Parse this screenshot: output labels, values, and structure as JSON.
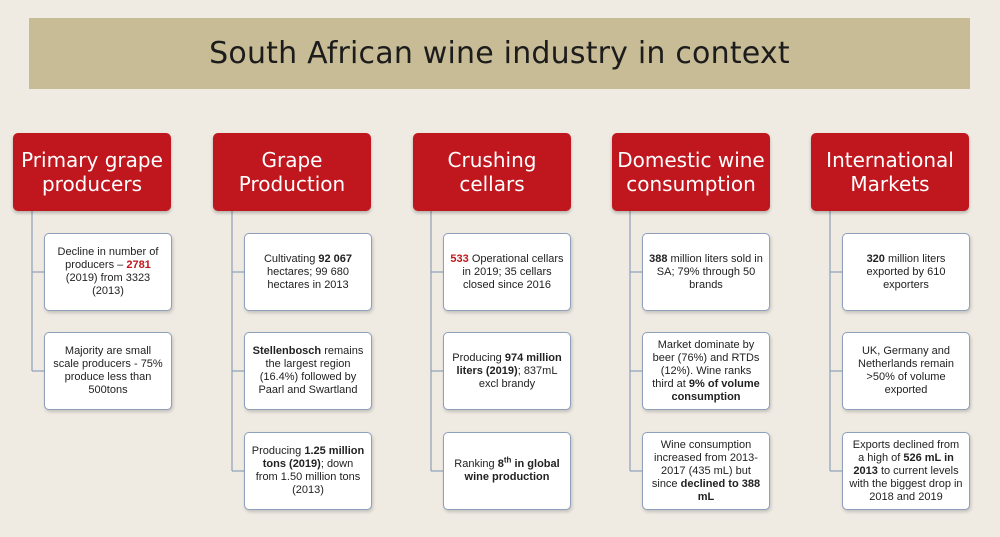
{
  "title": "South African wine industry in context",
  "colors": {
    "header_red": "#c0161d",
    "title_bar": "#c8bc96",
    "background": "#efebe3",
    "box_border": "#8ea0bb"
  },
  "columns": [
    {
      "header": [
        "Primary grape",
        "producers"
      ],
      "boxes": [
        [
          {
            "t": "Decline in number of producers – "
          },
          {
            "t": "2781",
            "red": true
          },
          {
            "t": " (2019) from 3323 (2013)"
          }
        ],
        [
          {
            "t": "Majority are small scale producers - 75% produce less than 500tons"
          }
        ]
      ]
    },
    {
      "header": [
        "Grape",
        "Production"
      ],
      "boxes": [
        [
          {
            "t": "Cultivating "
          },
          {
            "t": "92 067",
            "b": true
          },
          {
            "t": " hectares; 99 680 hectares in 2013"
          }
        ],
        [
          {
            "t": "Stellenbosch",
            "b": true
          },
          {
            "t": " remains the largest region (16.4%) followed by Paarl and Swartland"
          }
        ],
        [
          {
            "t": "Producing "
          },
          {
            "t": "1.25 million tons (2019)",
            "b": true
          },
          {
            "t": "; down from 1.50 million tons (2013)"
          }
        ]
      ]
    },
    {
      "header": [
        "Crushing",
        "cellars"
      ],
      "boxes": [
        [
          {
            "t": "533",
            "red": true
          },
          {
            "t": " Operational cellars in 2019; 35 cellars closed since 2016"
          }
        ],
        [
          {
            "t": "Producing   "
          },
          {
            "t": "974 million liters (2019)",
            "b": true
          },
          {
            "t": "; 837mL excl brandy"
          }
        ],
        [
          {
            "t": "Ranking "
          },
          {
            "t": "8",
            "b": true
          },
          {
            "t": "th",
            "b": true,
            "sup": true
          },
          {
            "t": " in global wine production",
            "b": true
          }
        ]
      ]
    },
    {
      "header": [
        "Domestic wine",
        "consumption"
      ],
      "boxes": [
        [
          {
            "t": "388",
            "b": true
          },
          {
            "t": " million liters sold in SA; 79% through 50 brands"
          }
        ],
        [
          {
            "t": "Market dominate by beer (76%) and RTDs (12%). Wine ranks third at "
          },
          {
            "t": "9% of volume consumption",
            "b": true
          }
        ],
        [
          {
            "t": "Wine consumption increased from 2013-2017 (435 mL) but since "
          },
          {
            "t": "declined to 388 mL",
            "b": true
          }
        ]
      ]
    },
    {
      "header": [
        "International",
        "Markets"
      ],
      "boxes": [
        [
          {
            "t": "320",
            "b": true
          },
          {
            "t": " million liters exported by 610 exporters"
          }
        ],
        [
          {
            "t": "UK, Germany and Netherlands remain >50% of volume exported"
          }
        ],
        [
          {
            "t": "Exports declined from a high of "
          },
          {
            "t": "526 mL in 2013",
            "b": true
          },
          {
            "t": " to current levels with the biggest drop in 2018 and 2019"
          }
        ]
      ]
    }
  ]
}
